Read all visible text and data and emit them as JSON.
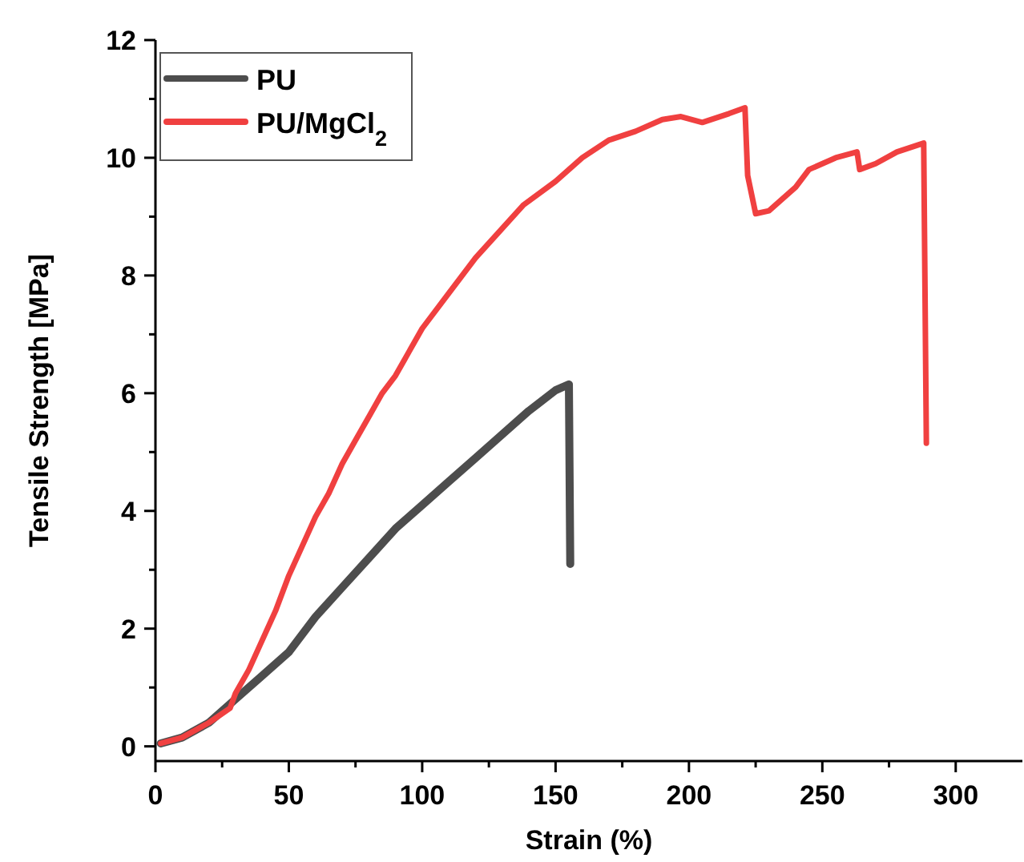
{
  "chart_data": {
    "type": "line",
    "xlabel": "Strain (%)",
    "ylabel": "Tensile Strength [MPa]",
    "xlim": [
      0,
      325
    ],
    "ylim": [
      -0.25,
      12
    ],
    "xticks": [
      0,
      {
        "value": 25,
        "label": null
      },
      50,
      {
        "value": 75,
        "label": null
      },
      100,
      {
        "value": 125,
        "label": null
      },
      150,
      {
        "value": 175,
        "label": null
      },
      200,
      {
        "value": 225,
        "label": null
      },
      250,
      {
        "value": 275,
        "label": null
      },
      300
    ],
    "yticks": [
      0,
      {
        "value": 1,
        "label": null
      },
      2,
      {
        "value": 3,
        "label": null
      },
      4,
      {
        "value": 5,
        "label": null
      },
      6,
      {
        "value": 7,
        "label": null
      },
      8,
      {
        "value": 9,
        "label": null
      },
      10,
      {
        "value": 11,
        "label": null
      },
      12
    ],
    "legend": "top left",
    "grid": false,
    "marker": "none",
    "line_style": "solid",
    "series": [
      {
        "name": "PU",
        "color": "#4d4d4d",
        "x": [
          2,
          10,
          20,
          30,
          40,
          50,
          60,
          70,
          80,
          90,
          100,
          110,
          120,
          130,
          140,
          150,
          155,
          155.5
        ],
        "values": [
          0.05,
          0.15,
          0.4,
          0.8,
          1.2,
          1.6,
          2.2,
          2.7,
          3.2,
          3.7,
          4.1,
          4.5,
          4.9,
          5.3,
          5.7,
          6.05,
          6.15,
          3.1
        ]
      },
      {
        "name": "PU/MgCl$_{2}$",
        "color": "#f04040",
        "x": [
          2,
          10,
          20,
          28,
          30,
          35,
          40,
          45,
          50,
          55,
          60,
          65,
          70,
          75,
          80,
          85,
          90,
          95,
          100,
          110,
          120,
          130,
          138,
          150,
          160,
          170,
          180,
          190,
          197,
          205,
          215,
          221,
          222,
          225,
          230,
          240,
          245,
          255,
          263,
          264,
          270,
          278,
          288,
          289
        ],
        "values": [
          0.05,
          0.15,
          0.4,
          0.65,
          0.9,
          1.3,
          1.8,
          2.3,
          2.9,
          3.4,
          3.9,
          4.3,
          4.8,
          5.2,
          5.6,
          6.0,
          6.3,
          6.7,
          7.1,
          7.7,
          8.3,
          8.8,
          9.2,
          9.6,
          10.0,
          10.3,
          10.45,
          10.65,
          10.7,
          10.6,
          10.75,
          10.85,
          9.7,
          9.05,
          9.1,
          9.5,
          9.8,
          10.0,
          10.1,
          9.8,
          9.9,
          10.1,
          10.25,
          5.15
        ]
      }
    ]
  }
}
